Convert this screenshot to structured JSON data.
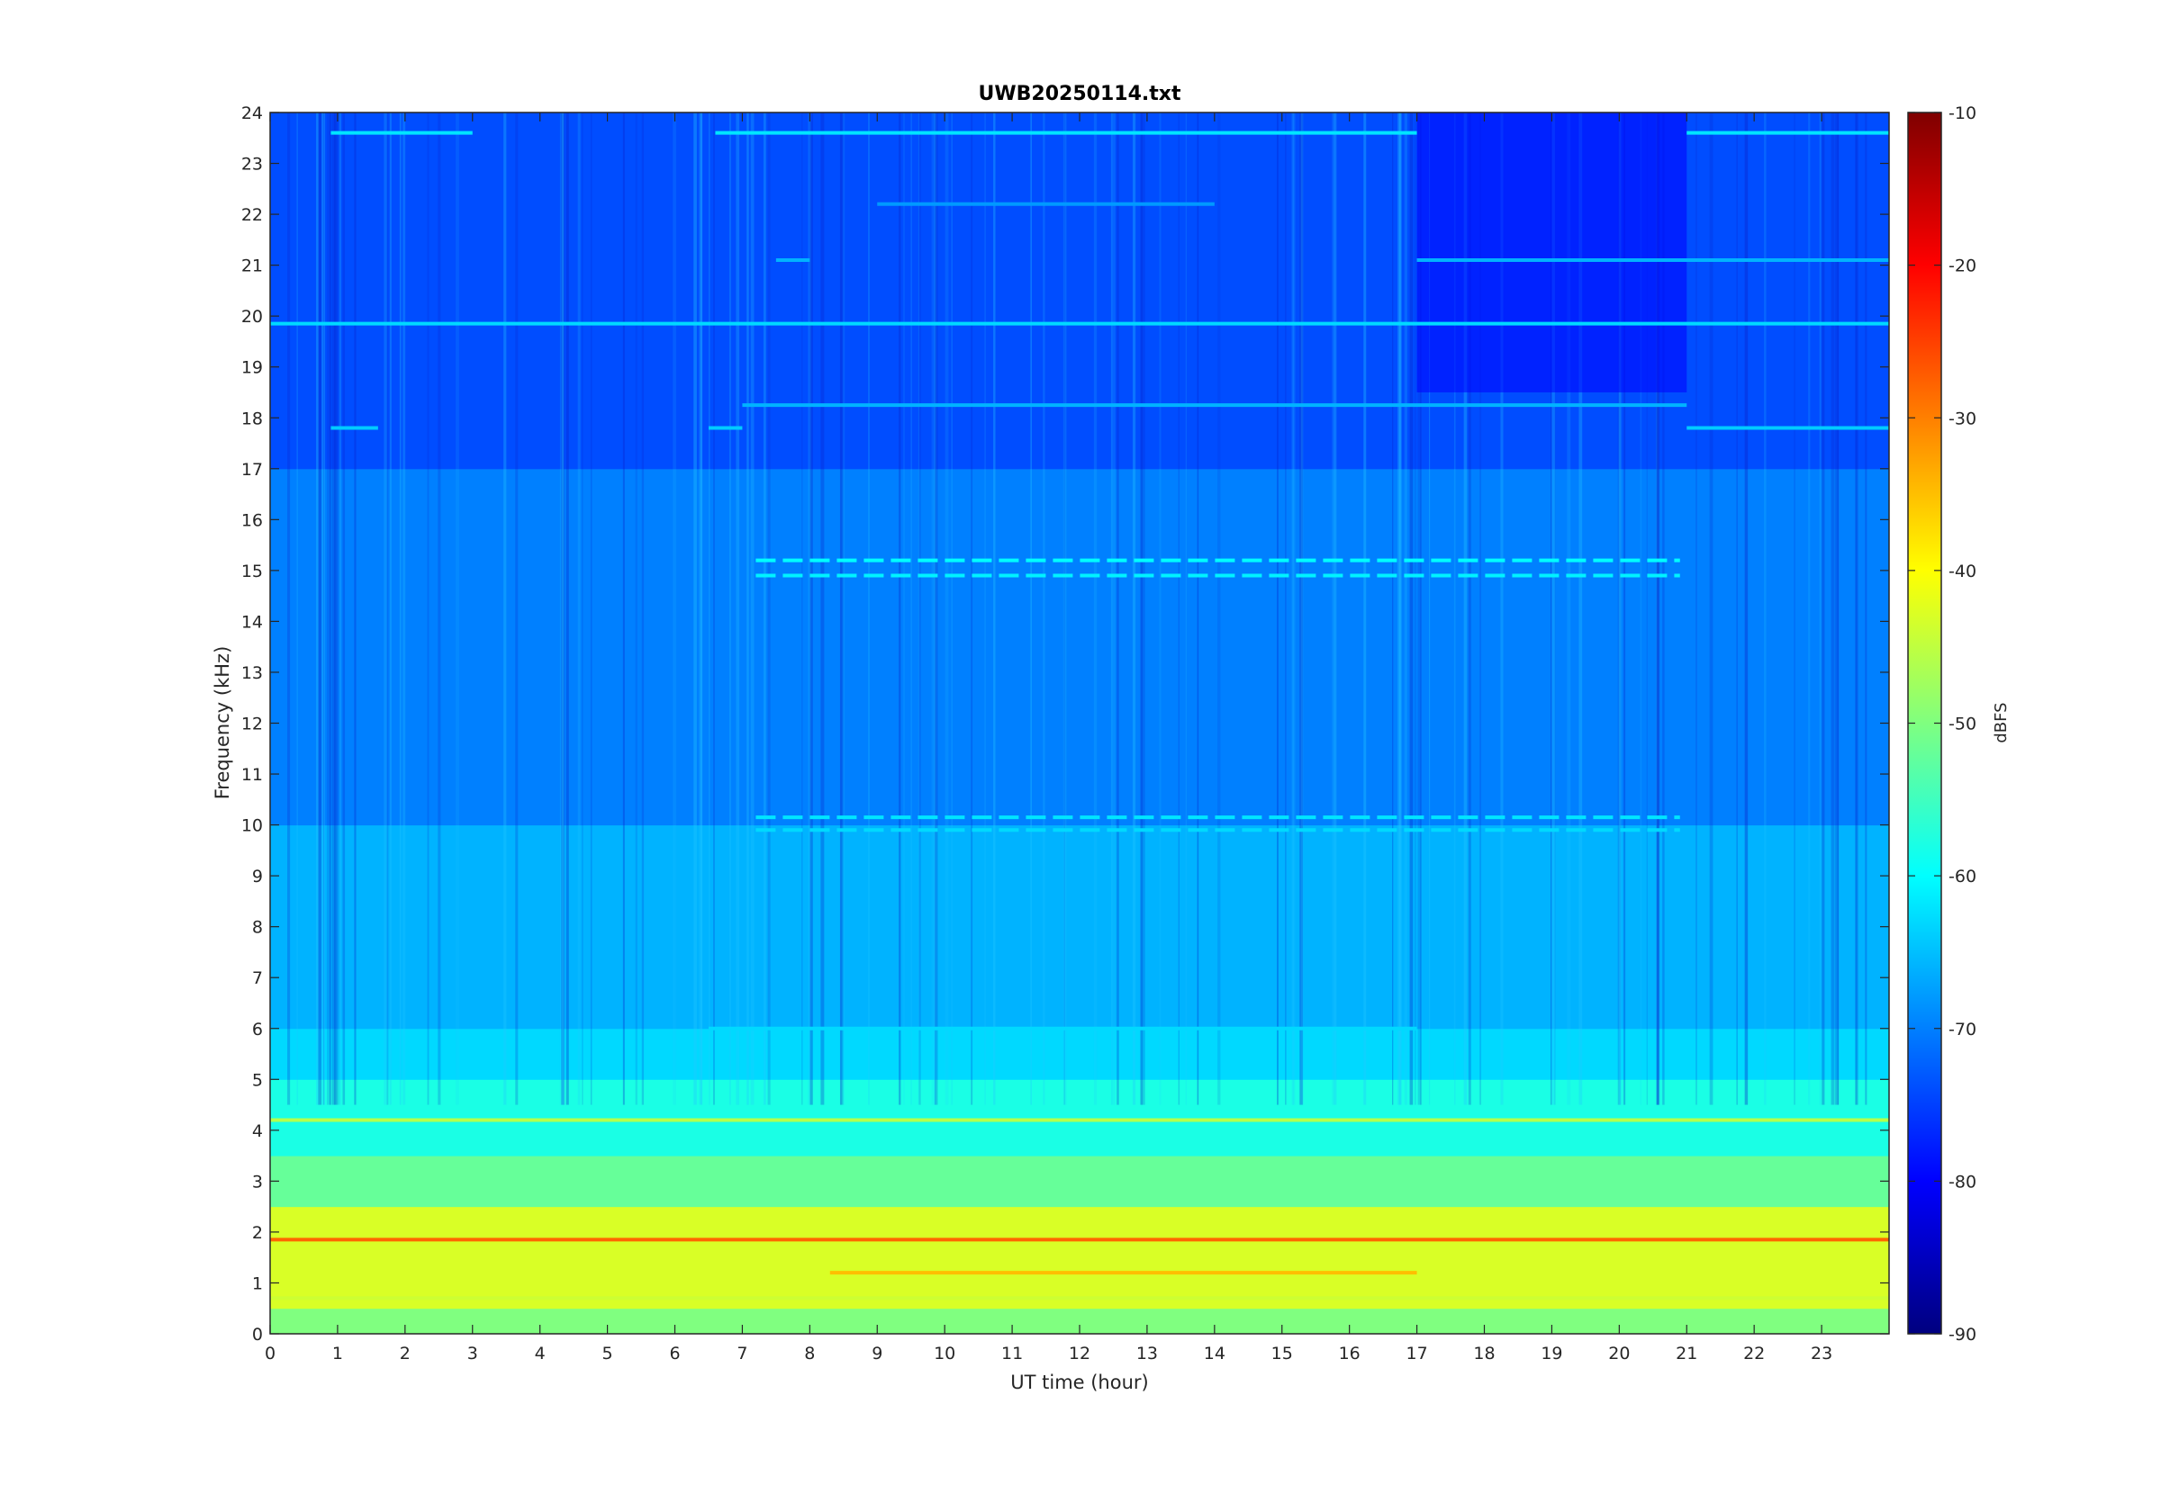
{
  "chart_data": {
    "type": "heatmap",
    "title": "UWB20250114.txt",
    "xlabel": "UT time (hour)",
    "ylabel": "Frequency (kHz)",
    "xlim": [
      0,
      24
    ],
    "ylim": [
      0,
      24
    ],
    "x_ticks": [
      "0",
      "1",
      "2",
      "3",
      "4",
      "5",
      "6",
      "7",
      "8",
      "9",
      "10",
      "11",
      "12",
      "13",
      "14",
      "15",
      "16",
      "17",
      "18",
      "19",
      "20",
      "21",
      "22",
      "23"
    ],
    "y_ticks": [
      "0",
      "1",
      "2",
      "3",
      "4",
      "5",
      "6",
      "7",
      "8",
      "9",
      "10",
      "11",
      "12",
      "13",
      "14",
      "15",
      "16",
      "17",
      "18",
      "19",
      "20",
      "21",
      "22",
      "23",
      "24"
    ],
    "colormap": "jet",
    "colorbar": {
      "label": "dBFS",
      "limits": [
        -90,
        -10
      ],
      "ticks": [
        "-10",
        "-20",
        "-30",
        "-40",
        "-50",
        "-60",
        "-70",
        "-80",
        "-90"
      ]
    },
    "bands": [
      {
        "y_min": 0.0,
        "y_max": 0.5,
        "level": -50
      },
      {
        "y_min": 0.5,
        "y_max": 2.5,
        "level": -43
      },
      {
        "y_min": 2.5,
        "y_max": 3.5,
        "level": -52
      },
      {
        "y_min": 3.5,
        "y_max": 5.0,
        "level": -58
      },
      {
        "y_min": 5.0,
        "y_max": 6.0,
        "level": -63
      },
      {
        "y_min": 6.0,
        "y_max": 10.0,
        "level": -66
      },
      {
        "y_min": 10.0,
        "y_max": 17.0,
        "level": -70
      },
      {
        "y_min": 17.0,
        "y_max": 24.0,
        "level": -74
      }
    ],
    "lines": [
      {
        "freq": 19.85,
        "level": -63,
        "x_start": 0,
        "x_end": 24
      },
      {
        "freq": 4.2,
        "level": -46,
        "x_start": 0,
        "x_end": 24
      },
      {
        "freq": 1.85,
        "level": -28,
        "x_start": 0,
        "x_end": 24
      },
      {
        "freq": 1.2,
        "level": -35,
        "x_start": 8.3,
        "x_end": 17.0
      },
      {
        "freq": 0.7,
        "level": -44,
        "x_start": 0,
        "x_end": 24
      },
      {
        "freq": 17.8,
        "level": -64,
        "x_start": 0.9,
        "x_end": 1.6
      },
      {
        "freq": 17.8,
        "level": -64,
        "x_start": 6.5,
        "x_end": 7.0
      },
      {
        "freq": 17.8,
        "level": -64,
        "x_start": 21.0,
        "x_end": 24
      },
      {
        "freq": 18.25,
        "level": -66,
        "x_start": 7.0,
        "x_end": 21.0
      },
      {
        "freq": 21.1,
        "level": -66,
        "x_start": 7.5,
        "x_end": 8.0
      },
      {
        "freq": 21.1,
        "level": -66,
        "x_start": 17.0,
        "x_end": 24
      },
      {
        "freq": 22.2,
        "level": -68,
        "x_start": 9.0,
        "x_end": 14.0
      },
      {
        "freq": 15.2,
        "level": -60,
        "x_start": 7.2,
        "x_end": 20.9,
        "dashed": true
      },
      {
        "freq": 14.9,
        "level": -61,
        "x_start": 7.2,
        "x_end": 20.9,
        "dashed": true
      },
      {
        "freq": 10.15,
        "level": -62,
        "x_start": 7.2,
        "x_end": 20.9,
        "dashed": true
      },
      {
        "freq": 9.9,
        "level": -63,
        "x_start": 7.2,
        "x_end": 20.9,
        "dashed": true
      },
      {
        "freq": 23.6,
        "level": -62,
        "x_start": 0.9,
        "x_end": 3.0
      },
      {
        "freq": 23.6,
        "level": -62,
        "x_start": 6.6,
        "x_end": 17.0
      },
      {
        "freq": 23.6,
        "level": -62,
        "x_start": 21.0,
        "x_end": 24
      },
      {
        "freq": 6.0,
        "level": -63,
        "x_start": 6.5,
        "x_end": 17.0
      }
    ],
    "quiet_periods": [
      {
        "x_start": 17.0,
        "x_end": 21.0,
        "f_min": 18.5,
        "f_max": 24,
        "level": -80
      }
    ]
  }
}
